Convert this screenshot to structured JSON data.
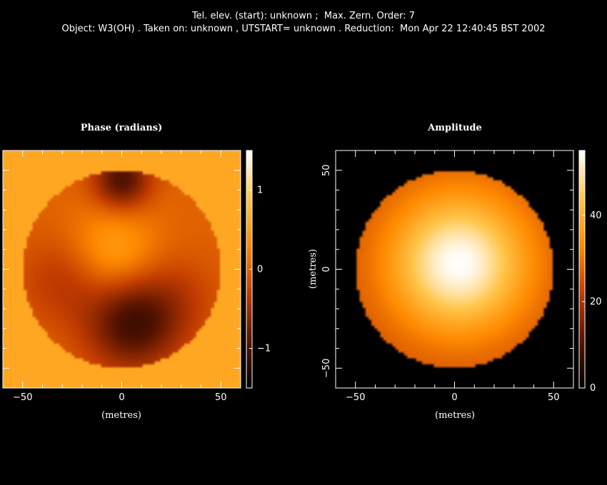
{
  "header": {
    "line1": "Tel. elev. (start): unknown ;  Max. Zern. Order: 7",
    "line2": "Object: W3(OH) . Taken on: unknown , UTSTART= unknown . Reduction:  Mon Apr 22 12:40:45 BST 2002"
  },
  "chart_data": [
    {
      "type": "heatmap",
      "title": "Phase (radians)",
      "xlabel": "(metres)",
      "ylabel": "",
      "xlim": [
        -60,
        60
      ],
      "ylim": [
        -60,
        60
      ],
      "xticks": [
        -50,
        0,
        50
      ],
      "yticks": [],
      "pupil_radius": 50,
      "background_value": 0.58,
      "colorbar": {
        "ticks": [
          1,
          0,
          -1
        ],
        "range": [
          -1.5,
          1.5
        ],
        "tick_labels": [
          "1",
          "0",
          "−1"
        ]
      },
      "features": [
        {
          "x": -5,
          "y": 8,
          "value": 0.55
        },
        {
          "x": 5,
          "y": -28,
          "value": -1.0
        },
        {
          "x": 25,
          "y": -15,
          "value": -0.3
        },
        {
          "x": -28,
          "y": -5,
          "value": -0.4
        },
        {
          "x": 0,
          "y": 45,
          "value": -1.0
        }
      ]
    },
    {
      "type": "heatmap",
      "title": "Amplitude",
      "xlabel": "(metres)",
      "ylabel": "(metres)",
      "xlim": [
        -60,
        60
      ],
      "ylim": [
        -60,
        60
      ],
      "xticks": [
        -50,
        0,
        50
      ],
      "yticks": [
        50,
        0,
        -50
      ],
      "pupil_radius": 50,
      "peak_value": 55,
      "peak_center": [
        2,
        3
      ],
      "colorbar": {
        "ticks": [
          40,
          20,
          0
        ],
        "range": [
          0,
          55
        ],
        "tick_labels": [
          "40",
          "20",
          "0"
        ]
      }
    }
  ],
  "colors": {
    "background": "#000000",
    "axes": "#ffffff",
    "colormap": [
      "#000000",
      "#5a1400",
      "#c23c00",
      "#ff8a00",
      "#ffc64a",
      "#ffffff"
    ]
  }
}
